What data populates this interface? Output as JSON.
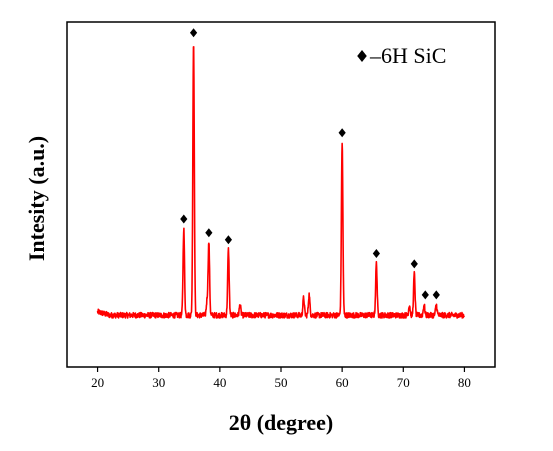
{
  "chart_data": {
    "type": "line",
    "xlabel": "2θ (degree)",
    "ylabel": "Intesity (a.u.)",
    "xlim": [
      15,
      85
    ],
    "xticks": [
      20,
      30,
      40,
      50,
      60,
      70,
      80
    ],
    "y_tick_labels": false,
    "ylim": [
      0,
      100
    ],
    "grid": false,
    "legend": {
      "position": "top-right",
      "entries": [
        {
          "marker": "diamond",
          "label": "–6H SiC"
        }
      ]
    },
    "series": [
      {
        "color": "#ff0000",
        "baseline": 15,
        "x_range": [
          20,
          80
        ],
        "peaks": [
          {
            "x": 34.1,
            "y": 40
          },
          {
            "x": 35.7,
            "y": 94
          },
          {
            "x": 37.9,
            "y": 19
          },
          {
            "x": 38.2,
            "y": 36
          },
          {
            "x": 41.4,
            "y": 34
          },
          {
            "x": 43.3,
            "y": 18
          },
          {
            "x": 53.7,
            "y": 20
          },
          {
            "x": 54.6,
            "y": 21
          },
          {
            "x": 60.0,
            "y": 65
          },
          {
            "x": 65.6,
            "y": 30
          },
          {
            "x": 71.0,
            "y": 18
          },
          {
            "x": 71.8,
            "y": 27
          },
          {
            "x": 73.4,
            "y": 18
          },
          {
            "x": 75.4,
            "y": 18
          }
        ]
      }
    ],
    "markers": {
      "symbol": "diamond",
      "color": "#000000",
      "x": [
        34.1,
        35.7,
        38.2,
        41.4,
        60.0,
        65.6,
        71.8,
        73.6,
        75.4
      ]
    }
  }
}
